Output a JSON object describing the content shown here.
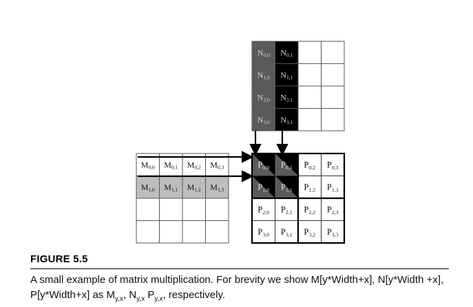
{
  "figure": {
    "label": "FIGURE 5.5",
    "caption": {
      "text_1": "A small example of matrix multiplication. For brevity we show M[y*Width+x], N[y*Width +x], P[y*Width+x] as M",
      "sub_1": "y,x",
      "text_2": ", N",
      "sub_2": "y,x",
      "text_3": " P",
      "sub_3": "y,x",
      "text_4": ", respectively."
    }
  },
  "matrix_n": {
    "cells": [
      [
        "N0,0",
        "N0,1",
        "",
        ""
      ],
      [
        "N1,0",
        "N1,1",
        "",
        ""
      ],
      [
        "N2,0",
        "N2,1",
        "",
        ""
      ],
      [
        "N3,0",
        "N3,1",
        "",
        ""
      ]
    ],
    "fills": [
      [
        "#5a5a5a",
        "#000000",
        "#ffffff",
        "#ffffff"
      ],
      [
        "#5a5a5a",
        "#000000",
        "#ffffff",
        "#ffffff"
      ],
      [
        "#5a5a5a",
        "#000000",
        "#ffffff",
        "#ffffff"
      ],
      [
        "#5a5a5a",
        "#000000",
        "#ffffff",
        "#ffffff"
      ]
    ]
  },
  "matrix_m": {
    "cells": [
      [
        "M0,0",
        "M0,1",
        "M0,2",
        "M0,3"
      ],
      [
        "M1,0",
        "M1,1",
        "M1,2",
        "M1,3"
      ],
      [
        "",
        "",
        "",
        ""
      ],
      [
        "",
        "",
        "",
        ""
      ]
    ],
    "fills": [
      [
        "#ffffff",
        "#ffffff",
        "#ffffff",
        "#ffffff"
      ],
      [
        "#bdbdbd",
        "#bdbdbd",
        "#bdbdbd",
        "#bdbdbd"
      ],
      [
        "#ffffff",
        "#ffffff",
        "#ffffff",
        "#ffffff"
      ],
      [
        "#ffffff",
        "#ffffff",
        "#ffffff",
        "#ffffff"
      ]
    ]
  },
  "matrix_p": {
    "cells": [
      [
        "P0,0",
        "P0,1",
        "P0,2",
        "P0,3"
      ],
      [
        "P1,0",
        "P1,1",
        "P1,2",
        "P1,3"
      ],
      [
        "P2,0",
        "P2,1",
        "P2,2",
        "P2,3"
      ],
      [
        "P3,0",
        "P3,1",
        "P3,2",
        "P3,3"
      ]
    ]
  },
  "colors": {
    "dark_gray": "#5a5a5a",
    "light_gray": "#bdbdbd",
    "black": "#000000",
    "grid_line": "#555555"
  }
}
